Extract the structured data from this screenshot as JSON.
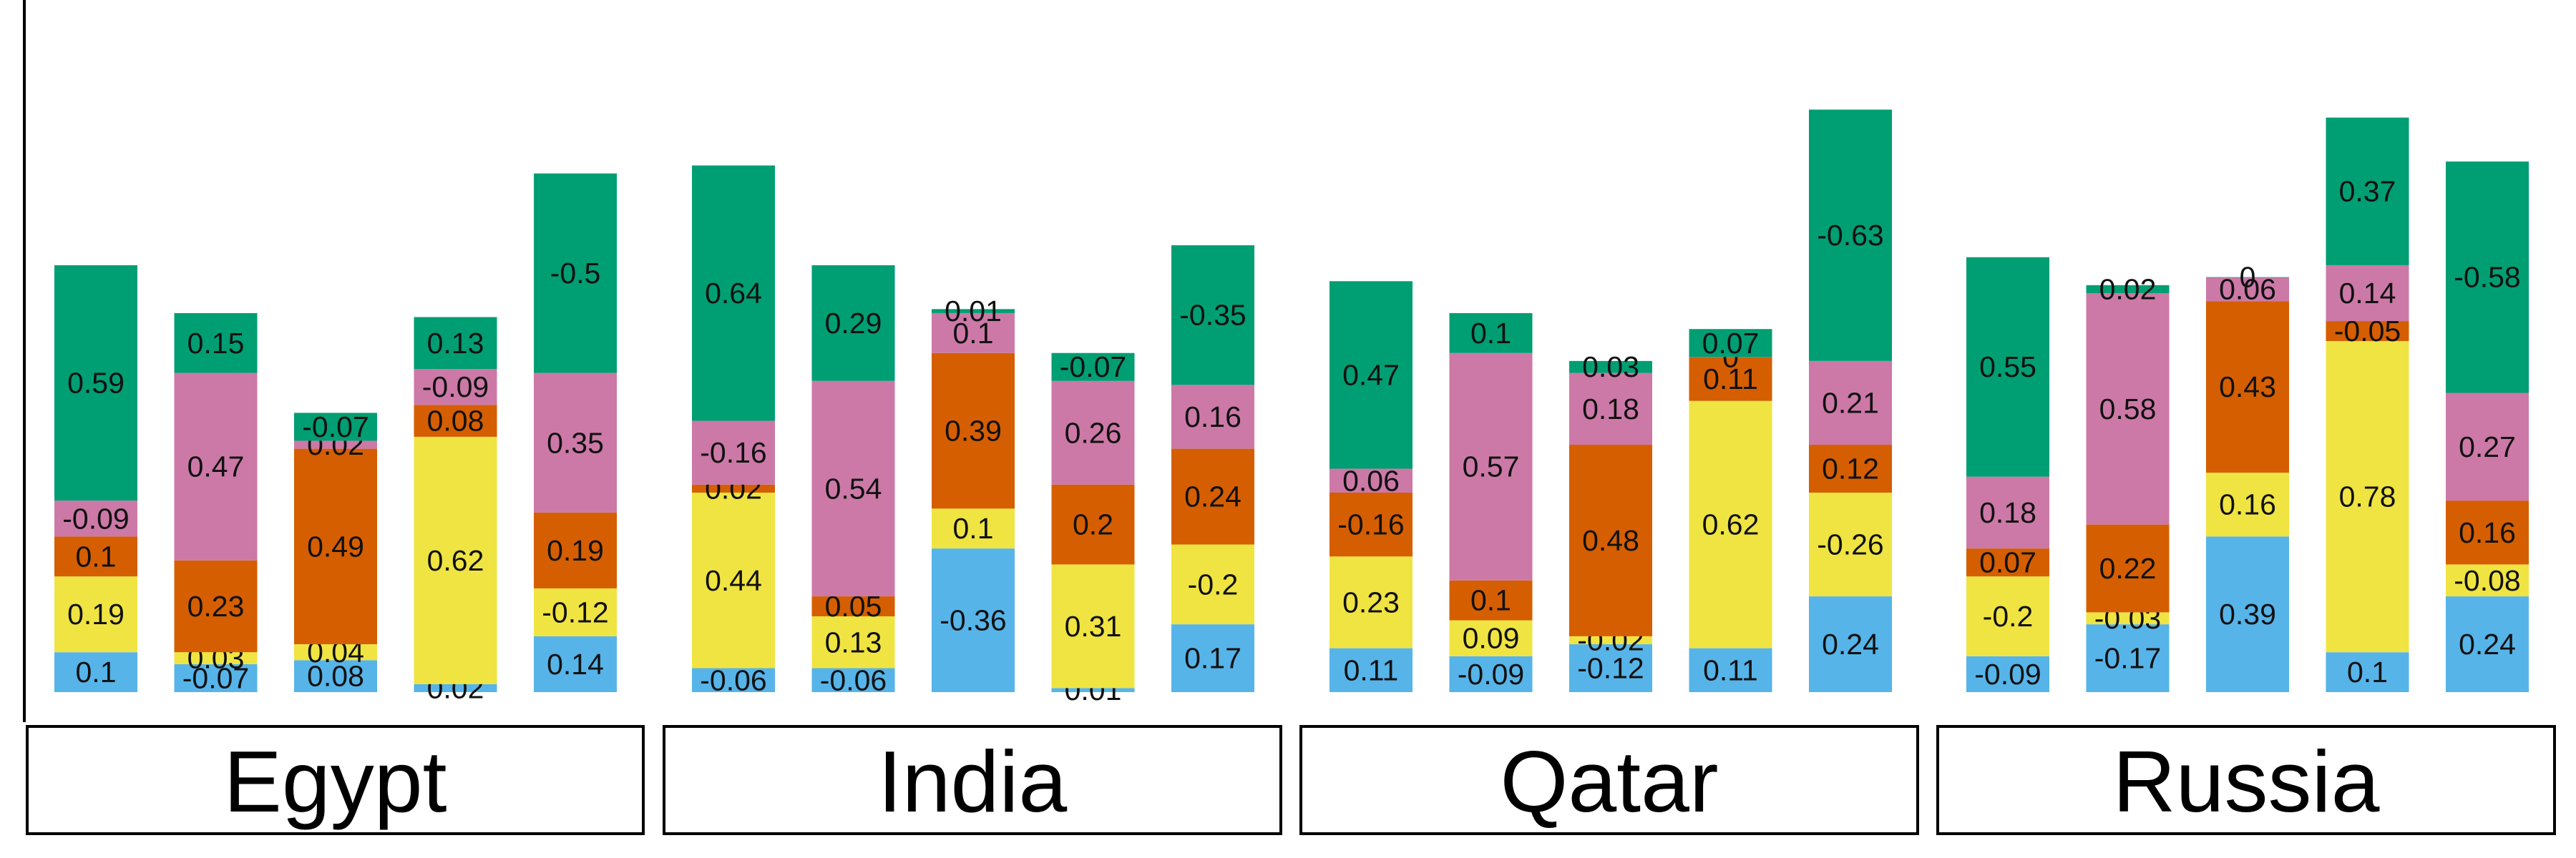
{
  "chart_data": {
    "type": "bar",
    "stacked": true,
    "title": "",
    "xlabel": "",
    "ylabel": "",
    "grid": false,
    "legend": "none",
    "groups": [
      "Egypt",
      "India",
      "Qatar",
      "Russia"
    ],
    "layer_colors": [
      "#56b4e9",
      "#f0e442",
      "#d55e00",
      "#cc79a7",
      "#009e73"
    ],
    "bars": [
      [
        {
          "segments": [
            0.1,
            0.19,
            0.1,
            -0.09,
            0.59
          ],
          "display_heights": [
            0.1,
            0.19,
            0.1,
            0.09,
            0.59
          ]
        },
        {
          "segments": [
            -0.07,
            0.03,
            0.23,
            0.47,
            0.15
          ],
          "display_heights": [
            0.07,
            0.03,
            0.23,
            0.47,
            0.15
          ]
        },
        {
          "segments": [
            0.08,
            0.04,
            0.49,
            0.02,
            -0.07
          ],
          "display_heights": [
            0.08,
            0.04,
            0.49,
            0.02,
            0.07
          ]
        },
        {
          "segments": [
            0.02,
            0.62,
            0.08,
            -0.09,
            0.13
          ],
          "display_heights": [
            0.02,
            0.62,
            0.08,
            0.09,
            0.13
          ]
        },
        {
          "segments": [
            0.14,
            -0.12,
            0.19,
            0.35,
            -0.5
          ],
          "display_heights": [
            0.14,
            0.12,
            0.19,
            0.35,
            0.5
          ]
        }
      ],
      [
        {
          "segments": [
            -0.06,
            0.44,
            0.02,
            -0.16,
            0.64
          ],
          "display_heights": [
            0.06,
            0.44,
            0.02,
            0.16,
            0.64
          ]
        },
        {
          "segments": [
            -0.06,
            0.13,
            0.05,
            0.54,
            0.29
          ],
          "display_heights": [
            0.06,
            0.13,
            0.05,
            0.54,
            0.29
          ]
        },
        {
          "segments": [
            -0.36,
            0.1,
            0.39,
            0.1,
            0.01
          ],
          "display_heights": [
            0.36,
            0.1,
            0.39,
            0.1,
            0.01
          ]
        },
        {
          "segments": [
            0.01,
            0.31,
            0.2,
            0.26,
            -0.07
          ],
          "display_heights": [
            0.01,
            0.31,
            0.2,
            0.26,
            0.07
          ]
        },
        {
          "segments": [
            0.17,
            -0.2,
            0.24,
            0.16,
            -0.35
          ],
          "display_heights": [
            0.17,
            0.2,
            0.24,
            0.16,
            0.35
          ]
        }
      ],
      [
        {
          "segments": [
            0.11,
            0.23,
            -0.16,
            0.06,
            0.47
          ],
          "display_heights": [
            0.11,
            0.23,
            0.16,
            0.06,
            0.47
          ]
        },
        {
          "segments": [
            -0.09,
            0.09,
            0.1,
            0.57,
            0.1
          ],
          "display_heights": [
            0.09,
            0.09,
            0.1,
            0.57,
            0.1
          ]
        },
        {
          "segments": [
            -0.12,
            -0.02,
            0.48,
            0.18,
            0.03
          ],
          "display_heights": [
            0.12,
            0.02,
            0.48,
            0.18,
            0.03
          ]
        },
        {
          "segments": [
            0.11,
            0.62,
            0.11,
            0,
            0.07
          ],
          "display_heights": [
            0.11,
            0.62,
            0.11,
            0,
            0.07
          ]
        },
        {
          "segments": [
            0.24,
            -0.26,
            0.12,
            0.21,
            -0.63
          ],
          "display_heights": [
            0.24,
            0.26,
            0.12,
            0.21,
            0.63
          ]
        }
      ],
      [
        {
          "segments": [
            -0.09,
            -0.2,
            0.07,
            0.18,
            0.55
          ],
          "display_heights": [
            0.09,
            0.2,
            0.07,
            0.18,
            0.55
          ]
        },
        {
          "segments": [
            -0.17,
            -0.03,
            0.22,
            0.58,
            0.02
          ],
          "display_heights": [
            0.17,
            0.03,
            0.22,
            0.58,
            0.02
          ]
        },
        {
          "segments": [
            0.39,
            0.16,
            0.43,
            0.06,
            0
          ],
          "display_heights": [
            0.39,
            0.16,
            0.43,
            0.06,
            0
          ]
        },
        {
          "segments": [
            0.1,
            0.78,
            -0.05,
            0.14,
            0.37
          ],
          "display_heights": [
            0.1,
            0.78,
            0.05,
            0.14,
            0.37
          ]
        },
        {
          "segments": [
            0.24,
            -0.08,
            0.16,
            0.27,
            -0.58
          ],
          "display_heights": [
            0.24,
            0.08,
            0.16,
            0.27,
            0.58
          ]
        }
      ]
    ]
  }
}
